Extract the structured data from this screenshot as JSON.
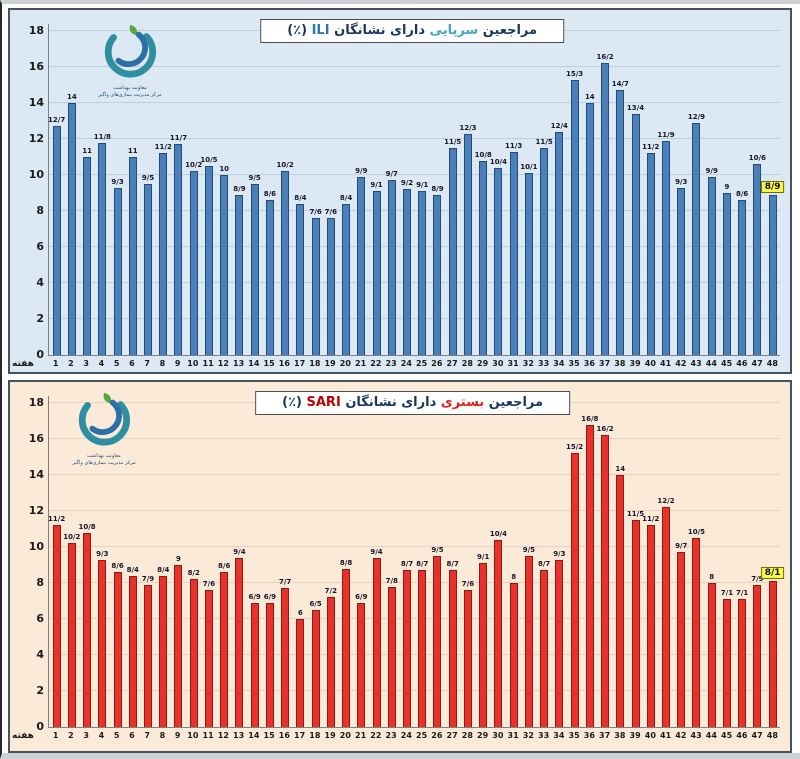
{
  "x_axis": {
    "week_word": "هفته",
    "x_labels": [
      "1",
      "2",
      "3",
      "4",
      "5",
      "6",
      "7",
      "8",
      "9",
      "10",
      "11",
      "12",
      "13",
      "14",
      "15",
      "16",
      "17",
      "18",
      "19",
      "20",
      "21",
      "22",
      "23",
      "24",
      "25",
      "26",
      "27",
      "28",
      "29",
      "30",
      "31",
      "32",
      "33",
      "34",
      "35",
      "36",
      "37",
      "38",
      "39",
      "40",
      "41",
      "42",
      "43",
      "44",
      "45",
      "46",
      "47",
      "48"
    ]
  },
  "logo": {
    "name": "ministry-of-health-logo",
    "caption_line1": "معاونت بهداشت",
    "caption_line2": "مرکز مدیریت بیماری‌های واگیر"
  },
  "chart_data": [
    {
      "type": "bar",
      "id": "ili-outpatient",
      "title": {
        "prefix": "مراجعین",
        "highlight": "سرپایی",
        "middle": "دارای نشانگان",
        "code": "ILI",
        "percent": "(٪)"
      },
      "xlabel": "هفته",
      "ylabel": "",
      "ylim": [
        0,
        18
      ],
      "y_ticks": [
        0,
        2,
        4,
        6,
        8,
        10,
        12,
        14,
        16,
        18
      ],
      "grid": true,
      "categories_note": "weeks 1-48",
      "values": [
        12.7,
        14,
        11,
        11.8,
        9.3,
        11,
        9.5,
        11.2,
        11.7,
        10.2,
        10.5,
        10,
        8.9,
        9.5,
        8.6,
        10.2,
        8.4,
        7.6,
        7.6,
        8.4,
        9.9,
        9.1,
        9.7,
        9.2,
        9.1,
        8.9,
        11.5,
        12.3,
        10.8,
        10.4,
        11.3,
        10.1,
        11.5,
        12.4,
        15.3,
        14,
        16.2,
        14.7,
        13.4,
        11.2,
        11.9,
        9.3,
        12.9,
        9.9,
        9,
        8.6,
        10.6,
        8.9
      ],
      "labels": [
        "12/7",
        "14",
        "11",
        "11/8",
        "9/3",
        "11",
        "9/5",
        "11/2",
        "11/7",
        "10/2",
        "10/5",
        "10",
        "8/9",
        "9/5",
        "8/6",
        "10/2",
        "8/4",
        "7/6",
        "7/6",
        "8/4",
        "9/9",
        "9/1",
        "9/7",
        "9/2",
        "9/1",
        "8/9",
        "11/5",
        "12/3",
        "10/8",
        "10/4",
        "11/3",
        "10/1",
        "11/5",
        "12/4",
        "15/3",
        "14",
        "16/2",
        "14/7",
        "13/4",
        "11/2",
        "11/9",
        "9/3",
        "12/9",
        "9/9",
        "9",
        "8/6",
        "10/6",
        "8/9"
      ],
      "highlight_last_label": "8/9",
      "colors": {
        "panel_bg": "#dce8f4",
        "bar": "#4a7fba",
        "bar_border": "#1f4e79",
        "title_highlight": "#45a6c9",
        "title_code": "#2e75b6",
        "badge_bg": "#f8f84c"
      }
    },
    {
      "type": "bar",
      "id": "sari-inpatient",
      "title": {
        "prefix": "مراجعین",
        "highlight": "بستری",
        "middle": "دارای نشانگان",
        "code": "SARI",
        "percent": "(٪)"
      },
      "xlabel": "هفته",
      "ylabel": "",
      "ylim": [
        0,
        18
      ],
      "y_ticks": [
        0,
        2,
        4,
        6,
        8,
        10,
        12,
        14,
        16,
        18
      ],
      "grid": true,
      "categories_note": "weeks 1-48",
      "values": [
        11.2,
        10.2,
        10.8,
        9.3,
        8.6,
        8.4,
        7.9,
        8.4,
        9,
        8.2,
        7.6,
        8.6,
        9.4,
        6.9,
        6.9,
        7.7,
        6,
        6.5,
        7.2,
        8.8,
        6.9,
        9.4,
        7.8,
        8.7,
        8.7,
        9.5,
        8.7,
        7.6,
        9.1,
        10.4,
        8,
        9.5,
        8.7,
        9.3,
        15.2,
        16.8,
        16.2,
        14,
        11.5,
        11.2,
        12.2,
        9.7,
        10.5,
        8,
        7.1,
        7.1,
        7.9,
        8.1
      ],
      "labels": [
        "11/2",
        "10/2",
        "10/8",
        "9/3",
        "8/6",
        "8/4",
        "7/9",
        "8/4",
        "9",
        "8/2",
        "7/6",
        "8/6",
        "9/4",
        "6/9",
        "6/9",
        "7/7",
        "6",
        "6/5",
        "7/2",
        "8/8",
        "6/9",
        "9/4",
        "7/8",
        "8/7",
        "8/7",
        "9/5",
        "8/7",
        "7/6",
        "9/1",
        "10/4",
        "8",
        "9/5",
        "8/7",
        "9/3",
        "15/2",
        "16/8",
        "16/2",
        "14",
        "11/5",
        "11/2",
        "12/2",
        "9/7",
        "10/5",
        "8",
        "7/1",
        "7/1",
        "7/9",
        "8/1"
      ],
      "highlight_last_label": "8/1",
      "colors": {
        "panel_bg": "#fcead9",
        "bar": "#e8312b",
        "bar_border": "#8e1a14",
        "title_highlight": "#e02020",
        "title_code": "#c00000",
        "badge_bg": "#f8f84c"
      }
    }
  ]
}
